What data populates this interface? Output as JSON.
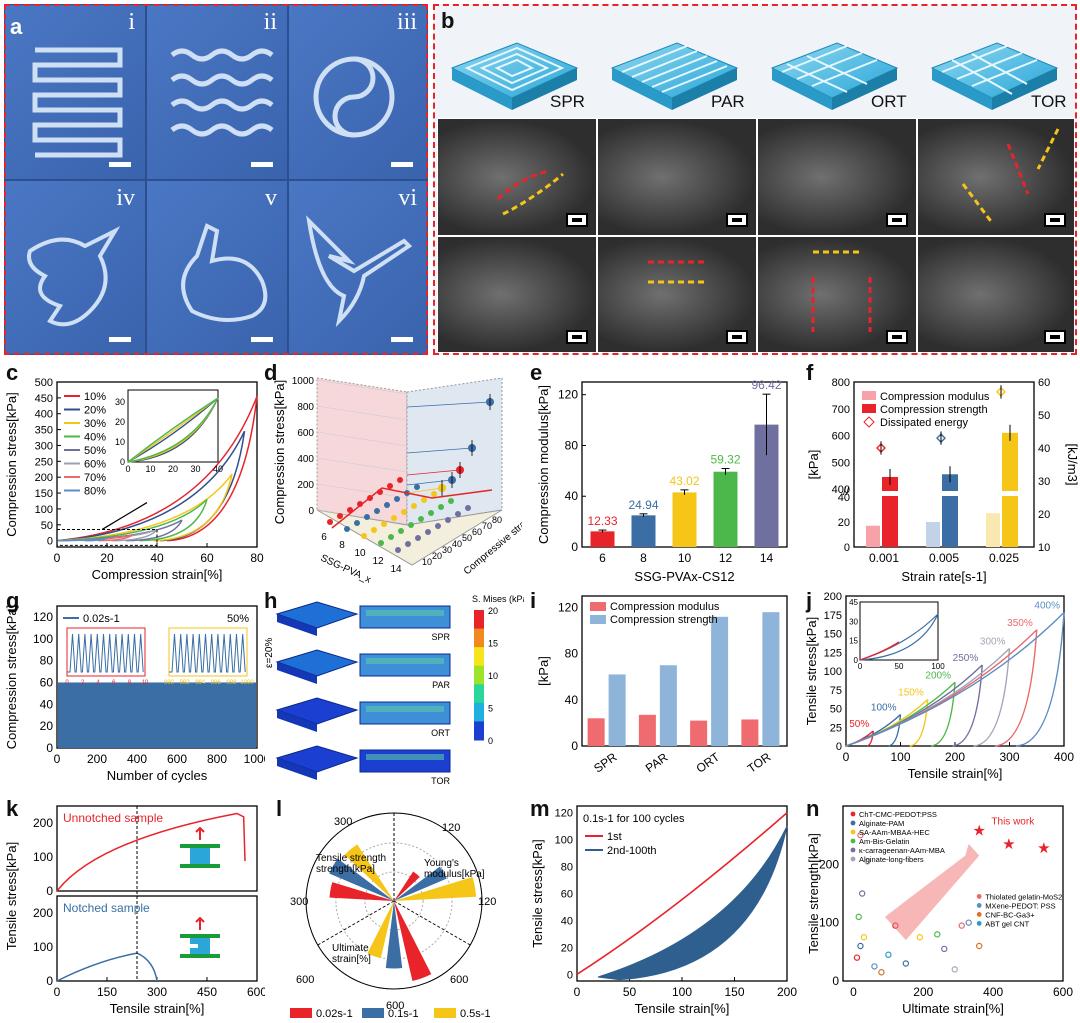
{
  "panel_letters": [
    "a",
    "b",
    "c",
    "d",
    "e",
    "f",
    "g",
    "h",
    "i",
    "j",
    "k",
    "l",
    "m",
    "n"
  ],
  "panel_a": {
    "tiles": [
      "i",
      "ii",
      "iii",
      "iv",
      "v",
      "vi"
    ]
  },
  "panel_b": {
    "structures": [
      "SPR",
      "PAR",
      "ORT",
      "TOR"
    ]
  },
  "colors": {
    "red": "#e8232a",
    "blue": "#3a6ea5",
    "yellow": "#f5c518",
    "green": "#4cb84c",
    "purple": "#6f6fa0",
    "pink": "#f7a1a8",
    "lightblue": "#8fb4d9"
  },
  "chart_data": [
    {
      "id": "c",
      "type": "line",
      "xlabel": "Compression strain[%]",
      "ylabel": "Compression stress[kPa]",
      "xlim": [
        0,
        80
      ],
      "ylim": [
        -20,
        500
      ],
      "xticks": [
        "0",
        "20",
        "40",
        "60",
        "80"
      ],
      "yticks": [
        "0",
        "50",
        "100",
        "150",
        "200",
        "250",
        "300",
        "350",
        "400",
        "450",
        "500"
      ],
      "legend": [
        "10%",
        "20%",
        "30%",
        "40%",
        "50%",
        "60%",
        "70%",
        "80%"
      ],
      "series_peaks": [
        {
          "strain": 80,
          "stress": 455
        },
        {
          "strain": 75,
          "stress": 345
        },
        {
          "strain": 70,
          "stress": 210
        },
        {
          "strain": 60,
          "stress": 130
        },
        {
          "strain": 50,
          "stress": 65
        },
        {
          "strain": 40,
          "stress": 35
        },
        {
          "strain": 30,
          "stress": 18
        },
        {
          "strain": 20,
          "stress": 8
        }
      ],
      "inset": {
        "xticks": [
          "0",
          "10",
          "20",
          "30",
          "40"
        ],
        "yticks": [
          "0",
          "10",
          "20",
          "30"
        ]
      }
    },
    {
      "id": "d",
      "type": "scatter3d",
      "zlabel": "Compression stress[kPa]",
      "xlabel": "SSG-PVA_x",
      "ylabel": "Compressive strain[%]",
      "zticks": [
        "0",
        "200",
        "400",
        "600",
        "800",
        "1000"
      ],
      "xticks": [
        "6",
        "8",
        "10",
        "12",
        "14"
      ],
      "yticks": [
        "10",
        "20",
        "30",
        "40",
        "50",
        "60",
        "70",
        "80"
      ]
    },
    {
      "id": "e",
      "type": "bar",
      "xlabel": "SSG-PVAx-CS12",
      "ylabel": "Compression modulus[kPa]",
      "categories": [
        "6",
        "8",
        "10",
        "12",
        "14"
      ],
      "values": [
        12.33,
        24.94,
        43.02,
        59.32,
        96.42
      ],
      "errors": [
        1,
        1.2,
        2.0,
        2.5,
        24
      ],
      "value_labels": [
        "12.33",
        "24.94",
        "43.02",
        "59.32",
        "96.42"
      ],
      "ylim": [
        0,
        130
      ],
      "yticks": [
        "0",
        "40",
        "80",
        "120"
      ]
    },
    {
      "id": "f",
      "type": "bar",
      "xlabel": "Strain rate[s-1]",
      "ylabel_left": "[kPa]",
      "ylabel_right": "[kJ/m3]",
      "categories": [
        "0.001",
        "0.005",
        "0.025"
      ],
      "legend": [
        "Compression modulus",
        "Compression strength",
        "Dissipated energy"
      ],
      "series": [
        {
          "name": "Compression modulus",
          "values": [
            17,
            20,
            27
          ]
        },
        {
          "name": "Compression strength",
          "values": [
            445,
            455,
            610
          ]
        },
        {
          "name": "Dissipated energy",
          "values": [
            40,
            43,
            57
          ]
        }
      ],
      "yticks_left": [
        "0",
        "20",
        "40",
        "400",
        "500",
        "600",
        "700",
        "800"
      ],
      "yticks_right": [
        "10",
        "20",
        "30",
        "40",
        "50",
        "60"
      ]
    },
    {
      "id": "g",
      "type": "line",
      "xlabel": "Number of cycles",
      "ylabel": "Compression stress[kPa]",
      "xlim": [
        0,
        1000
      ],
      "ylim": [
        0,
        130
      ],
      "xticks": [
        "0",
        "200",
        "400",
        "600",
        "800",
        "1000"
      ],
      "yticks": [
        "0",
        "20",
        "40",
        "60",
        "80",
        "100",
        "120"
      ],
      "legend": [
        "0.02s-1"
      ],
      "annotation": "50%",
      "insets": [
        {
          "xticks": [
            "0",
            "2",
            "4",
            "6",
            "8",
            "10"
          ]
        },
        {
          "xticks": [
            "990",
            "992",
            "994",
            "996",
            "998",
            "1000"
          ]
        }
      ],
      "plateau": 60
    },
    {
      "id": "h",
      "type": "heatmap",
      "colorbar_label": "S. Mises (kPa)",
      "colorbar_ticks": [
        "20",
        "15",
        "10",
        "5",
        "0"
      ],
      "strain_label": "ε=20%",
      "rows": [
        "SPR",
        "PAR",
        "ORT",
        "TOR"
      ]
    },
    {
      "id": "i",
      "type": "bar",
      "ylabel": "[kPa]",
      "categories": [
        "SPR",
        "PAR",
        "ORT",
        "TOR"
      ],
      "legend": [
        "Compression modulus",
        "Compression strength"
      ],
      "series": [
        {
          "name": "Compression modulus",
          "values": [
            24,
            27,
            22,
            23
          ]
        },
        {
          "name": "Compression strength",
          "values": [
            62,
            70,
            112,
            116
          ]
        }
      ],
      "ylim": [
        0,
        130
      ],
      "yticks": [
        "0",
        "40",
        "80",
        "120"
      ]
    },
    {
      "id": "j",
      "type": "line",
      "xlabel": "Tensile strain[%]",
      "ylabel": "Tensile stress[kPa]",
      "xlim": [
        0,
        400
      ],
      "ylim": [
        0,
        200
      ],
      "xticks": [
        "0",
        "100",
        "200",
        "300",
        "400"
      ],
      "yticks": [
        "0",
        "25",
        "50",
        "75",
        "100",
        "125",
        "150",
        "175",
        "200"
      ],
      "curve_labels": [
        "50%",
        "100%",
        "150%",
        "200%",
        "250%",
        "300%",
        "350%",
        "400%"
      ],
      "peaks": [
        {
          "strain": 50,
          "stress": 20
        },
        {
          "strain": 100,
          "stress": 42
        },
        {
          "strain": 150,
          "stress": 62
        },
        {
          "strain": 200,
          "stress": 85
        },
        {
          "strain": 250,
          "stress": 108
        },
        {
          "strain": 300,
          "stress": 130
        },
        {
          "strain": 350,
          "stress": 155
        },
        {
          "strain": 400,
          "stress": 178
        }
      ],
      "inset": {
        "xticks": [
          "0",
          "50",
          "100"
        ],
        "yticks": [
          "0",
          "15",
          "30",
          "45"
        ]
      }
    },
    {
      "id": "k",
      "type": "line",
      "xlabel": "Tensile strain[%]",
      "ylabel": "Tensile stress[kPa]",
      "xticks": [
        "0",
        "150",
        "300",
        "450",
        "600"
      ],
      "yticks_top": [
        "0",
        "100",
        "200"
      ],
      "yticks_bottom": [
        "0",
        "100",
        "200"
      ],
      "labels": [
        "Unnotched sample",
        "Notched sample"
      ],
      "unnotched_end": {
        "strain": 560,
        "stress": 228
      },
      "notched_peak": {
        "strain": 240,
        "stress": 82
      }
    },
    {
      "id": "l",
      "type": "polar-bar",
      "legend": [
        "0.02s-1",
        "0.1s-1",
        "0.5s-1"
      ],
      "axis_labels": [
        "Tensile strength[kPa]",
        "Young's modulus[kPa]",
        "Ultimate strain[%]"
      ],
      "ring_ticks_top": [
        "300",
        "120"
      ],
      "ring_ticks_side": [
        "300",
        "120"
      ],
      "ring_ticks_bottom": [
        "600",
        "600",
        "600"
      ],
      "tensile_strength": [
        220,
        240,
        230
      ],
      "youngs_modulus": [
        48,
        78,
        112
      ],
      "ultimate_strain": [
        560,
        460,
        400
      ]
    },
    {
      "id": "m",
      "type": "line",
      "xlabel": "Tensile strain[%]",
      "ylabel": "Tensile stress[kPa]",
      "xlim": [
        0,
        200
      ],
      "ylim": [
        -5,
        125
      ],
      "xticks": [
        "0",
        "50",
        "100",
        "150",
        "200"
      ],
      "yticks": [
        "0",
        "20",
        "40",
        "60",
        "80",
        "100",
        "120"
      ],
      "annotation": "0.1s-1 for 100 cycles",
      "legend": [
        "1st",
        "2nd-100th"
      ]
    },
    {
      "id": "n",
      "type": "scatter",
      "xlabel": "Ultimate strain[%]",
      "ylabel": "Tensile strength[kPa]",
      "xticks": [
        "0",
        "200",
        "400",
        "600"
      ],
      "yticks": [
        "0",
        "100",
        "200"
      ],
      "legend_left": [
        "ChT-CMC-PEDOT:PSS",
        "Alginate-PAM",
        "SA-AAm-MBAA-HEC",
        "Am-Bis-Gelatin",
        "κ-carrageenan-AAm-MBA",
        "Alginate-long-fibers"
      ],
      "legend_right": [
        "Thiolated gelatin-MoS2",
        "MXene-PEDOT: PSS",
        "CNF-BC-Ga3+",
        "ABT gel CNT"
      ],
      "this_work_label": "This work",
      "this_work": [
        {
          "x": 360,
          "y": 258
        },
        {
          "x": 445,
          "y": 235
        },
        {
          "x": 545,
          "y": 228
        }
      ],
      "others": [
        {
          "x": 10,
          "y": 40
        },
        {
          "x": 20,
          "y": 60
        },
        {
          "x": 30,
          "y": 75
        },
        {
          "x": 15,
          "y": 110
        },
        {
          "x": 25,
          "y": 150
        },
        {
          "x": 40,
          "y": 205
        },
        {
          "x": 20,
          "y": 250
        },
        {
          "x": 60,
          "y": 25
        },
        {
          "x": 80,
          "y": 15
        },
        {
          "x": 100,
          "y": 45
        },
        {
          "x": 120,
          "y": 95
        },
        {
          "x": 150,
          "y": 30
        },
        {
          "x": 190,
          "y": 75
        },
        {
          "x": 240,
          "y": 80
        },
        {
          "x": 260,
          "y": 55
        },
        {
          "x": 290,
          "y": 20
        },
        {
          "x": 310,
          "y": 95
        },
        {
          "x": 330,
          "y": 100
        },
        {
          "x": 360,
          "y": 60
        }
      ]
    }
  ]
}
